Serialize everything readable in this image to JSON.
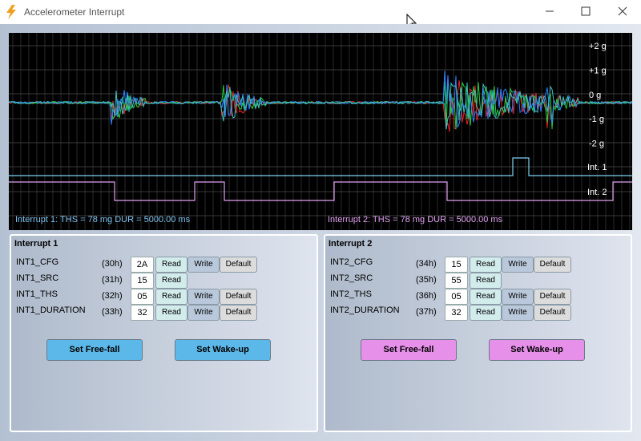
{
  "window": {
    "title": "Accelerometer Interrupt"
  },
  "scope": {
    "y_labels": [
      "+2 g",
      "+1 g",
      "0 g",
      "-1 g",
      "-2 g"
    ],
    "int_labels": [
      "Int. 1",
      "Int. 2"
    ],
    "status": [
      "Interrupt 1: THS = 78 mg  DUR = 5000.00 ms",
      "Interrupt 2: THS = 78 mg  DUR = 5000.00 ms"
    ]
  },
  "panels": [
    {
      "title": "Interrupt 1",
      "registers": [
        {
          "name": "INT1_CFG",
          "address": "(30h)",
          "value": "2A",
          "buttons": [
            "Read",
            "Write",
            "Default"
          ]
        },
        {
          "name": "INT1_SRC",
          "address": "(31h)",
          "value": "15",
          "buttons": [
            "Read"
          ]
        },
        {
          "name": "INT1_THS",
          "address": "(32h)",
          "value": "05",
          "buttons": [
            "Read",
            "Write",
            "Default"
          ]
        },
        {
          "name": "INT1_DURATION",
          "address": "(33h)",
          "value": "32",
          "buttons": [
            "Read",
            "Write",
            "Default"
          ]
        }
      ],
      "actions": [
        "Set Free-fall",
        "Set Wake-up"
      ]
    },
    {
      "title": "Interrupt 2",
      "registers": [
        {
          "name": "INT2_CFG",
          "address": "(34h)",
          "value": "15",
          "buttons": [
            "Read",
            "Write",
            "Default"
          ]
        },
        {
          "name": "INT2_SRC",
          "address": "(35h)",
          "value": "55",
          "buttons": [
            "Read"
          ]
        },
        {
          "name": "INT2_THS",
          "address": "(36h)",
          "value": "05",
          "buttons": [
            "Read",
            "Write",
            "Default"
          ]
        },
        {
          "name": "INT2_DURATION",
          "address": "(37h)",
          "value": "32",
          "buttons": [
            "Read",
            "Write",
            "Default"
          ]
        }
      ],
      "actions": [
        "Set Free-fall",
        "Set Wake-up"
      ]
    }
  ]
}
